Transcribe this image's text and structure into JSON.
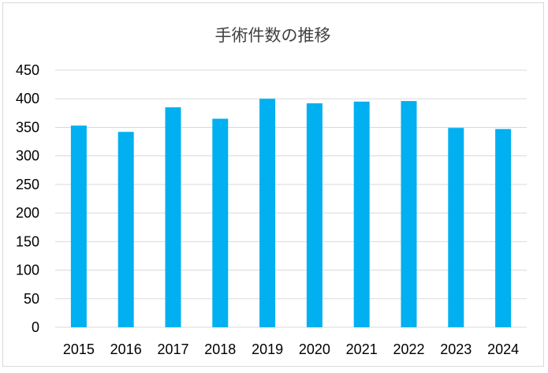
{
  "chart_data": {
    "type": "bar",
    "title": "手術件数の推移",
    "xlabel": "",
    "ylabel": "",
    "categories": [
      "2015",
      "2016",
      "2017",
      "2018",
      "2019",
      "2020",
      "2021",
      "2022",
      "2023",
      "2024"
    ],
    "values": [
      353,
      342,
      385,
      365,
      400,
      392,
      395,
      396,
      349,
      347
    ],
    "ylim": [
      0,
      450
    ],
    "yticks": [
      0,
      50,
      100,
      150,
      200,
      250,
      300,
      350,
      400,
      450
    ],
    "grid": true,
    "legend": "none",
    "bar_color": "#00b0f0",
    "grid_color": "#d9d9d9"
  }
}
